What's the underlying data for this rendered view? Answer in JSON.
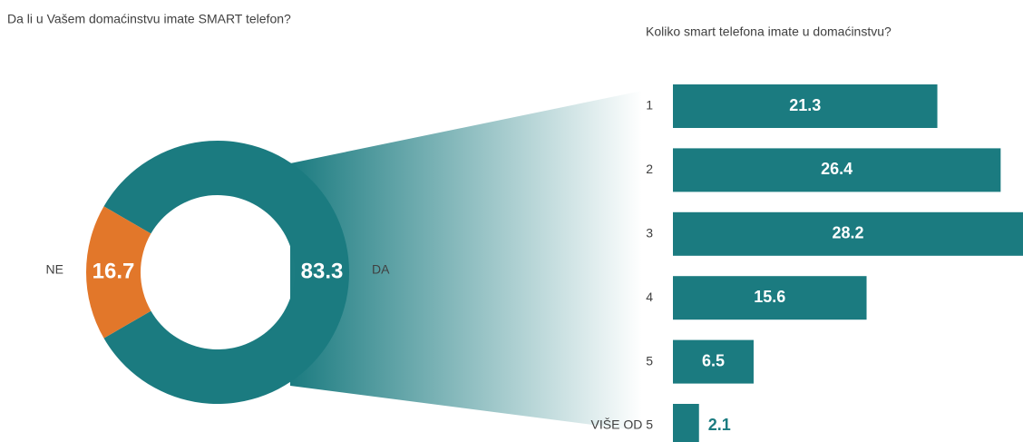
{
  "chart_data": [
    {
      "type": "donut",
      "title": "Da li u Vašem domaćinstvu imate SMART telefon?",
      "categories": [
        "DA",
        "NE"
      ],
      "values": [
        83.3,
        16.7
      ],
      "colors": [
        "#1b7b80",
        "#e2772a"
      ]
    },
    {
      "type": "hbar",
      "title": "Koliko smart telefona imate u domaćinstvu?",
      "categories": [
        "1",
        "2",
        "3",
        "4",
        "5",
        "VIŠE OD 5"
      ],
      "values": [
        21.3,
        26.4,
        28.2,
        15.6,
        6.5,
        2.1
      ],
      "color": "#1b7b80"
    }
  ]
}
